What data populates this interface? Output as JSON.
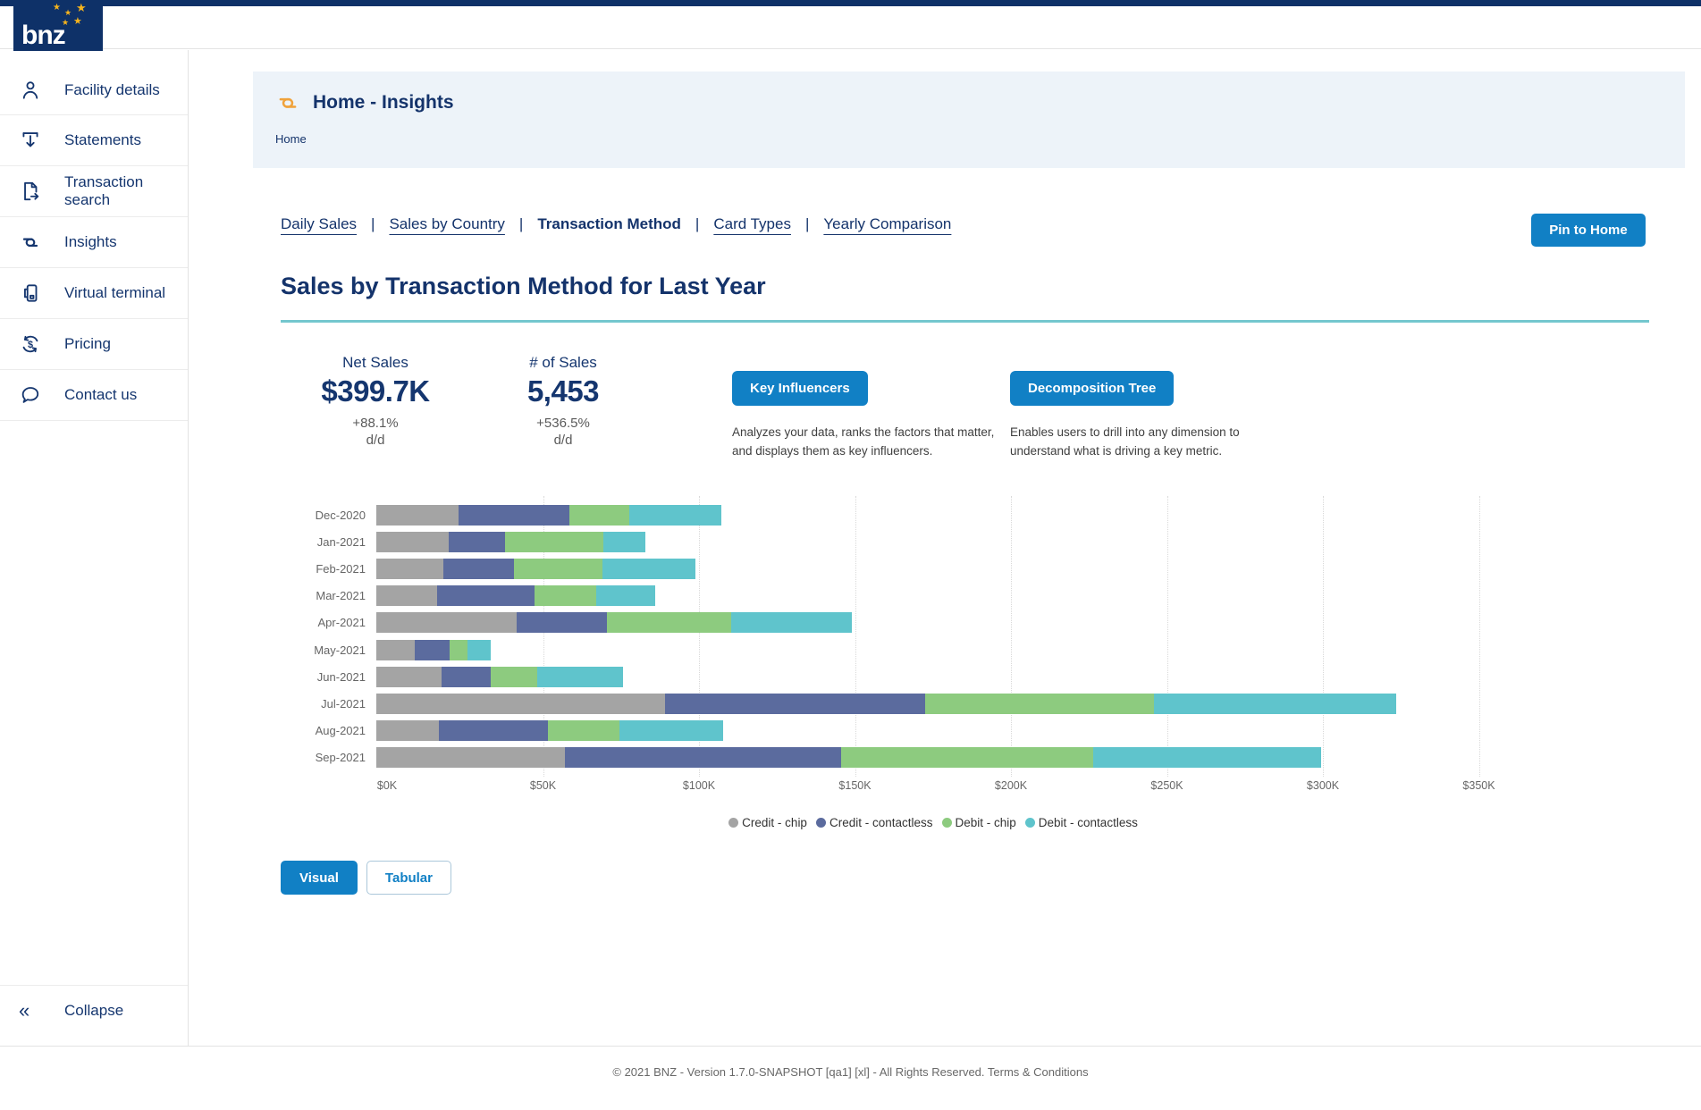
{
  "topbar": {
    "logo_text": "bnz"
  },
  "sidebar": {
    "items": [
      {
        "label": "Facility details",
        "icon": "person-icon"
      },
      {
        "label": "Statements",
        "icon": "statements-download-icon"
      },
      {
        "label": "Transaction search",
        "icon": "transaction-search-icon"
      },
      {
        "label": "Insights",
        "icon": "insights-icon"
      },
      {
        "label": "Virtual terminal",
        "icon": "virtual-terminal-icon"
      },
      {
        "label": "Pricing",
        "icon": "pricing-icon"
      },
      {
        "label": "Contact us",
        "icon": "chat-bubble-icon"
      }
    ],
    "collapse_label": "Collapse"
  },
  "banner": {
    "title": "Home - Insights",
    "breadcrumb": "Home"
  },
  "tabs": [
    {
      "label": "Daily Sales",
      "active": false
    },
    {
      "label": "Sales by Country",
      "active": false
    },
    {
      "label": "Transaction Method",
      "active": true
    },
    {
      "label": "Card Types",
      "active": false
    },
    {
      "label": "Yearly Comparison",
      "active": false
    }
  ],
  "pin_button": {
    "label": "Pin to Home"
  },
  "page": {
    "title": "Sales by Transaction Method for Last Year"
  },
  "kpis": [
    {
      "label": "Net Sales",
      "value": "$399.7K",
      "delta": "+88.1%",
      "period": "d/d"
    },
    {
      "label": "# of Sales",
      "value": "5,453",
      "delta": "+536.5%",
      "period": "d/d"
    }
  ],
  "actions": [
    {
      "button": "Key Influencers",
      "description_line1": "Analyzes your data, ranks the factors that matter,",
      "description_line2": "and displays them as key influencers."
    },
    {
      "button": "Decomposition Tree",
      "description_line1": "Enables users to drill into any dimension to",
      "description_line2": "understand what is driving a key metric."
    }
  ],
  "chart_data": {
    "type": "bar",
    "orientation": "horizontal",
    "stacked": true,
    "title": "Sales by Transaction Method for Last Year",
    "categories": [
      "Dec-2020",
      "Jan-2021",
      "Feb-2021",
      "Mar-2021",
      "Apr-2021",
      "May-2021",
      "Jun-2021",
      "Jul-2021",
      "Aug-2021",
      "Sep-2021"
    ],
    "series": [
      {
        "name": "Credit - chip",
        "color": "#a4a4a4",
        "values": [
          26.5,
          23.3,
          21.4,
          19.5,
          45.1,
          12.2,
          20.8,
          92.6,
          20.1,
          60.5
        ]
      },
      {
        "name": "Credit - contactless",
        "color": "#5b6b9e",
        "values": [
          35.3,
          18.0,
          22.7,
          31.2,
          28.9,
          11.4,
          16.0,
          83.4,
          34.9,
          88.6
        ]
      },
      {
        "name": "Debit - chip",
        "color": "#8dcb7f",
        "values": [
          19.3,
          31.4,
          28.4,
          19.8,
          39.8,
          5.5,
          14.8,
          73.3,
          22.9,
          80.7
        ]
      },
      {
        "name": "Debit - contactless",
        "color": "#5fc4cc",
        "values": [
          29.5,
          13.5,
          29.7,
          18.9,
          38.5,
          7.7,
          27.5,
          77.6,
          33.3,
          73.1
        ]
      }
    ],
    "x_ticks": [
      "$0K",
      "$50K",
      "$100K",
      "$150K",
      "$200K",
      "$250K",
      "$300K",
      "$350K"
    ],
    "xlim": [
      0,
      350
    ],
    "value_unit": "$K",
    "grid": "dotted-vertical",
    "legend_position": "bottom"
  },
  "view_toggle": [
    {
      "label": "Visual",
      "active": true
    },
    {
      "label": "Tabular",
      "active": false
    }
  ],
  "footer": {
    "text": "© 2021 BNZ - Version 1.7.0-SNAPSHOT [qa1] [xl] - All Rights Reserved. ",
    "link": "Terms & Conditions"
  }
}
